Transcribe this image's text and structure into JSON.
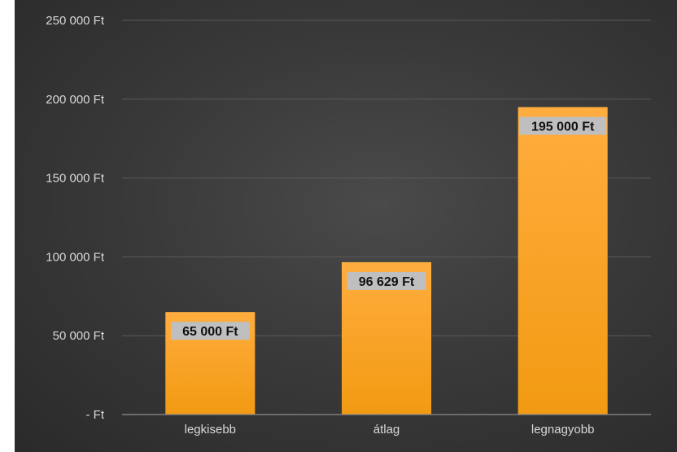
{
  "chart_data": {
    "type": "bar",
    "categories": [
      "legkisebb",
      "átlag",
      "legnagyobb"
    ],
    "values": [
      65000,
      96629,
      195000
    ],
    "data_labels": [
      "65 000 Ft",
      "96 629 Ft",
      "195 000 Ft"
    ],
    "y_ticks": [
      0,
      50000,
      100000,
      150000,
      200000,
      250000
    ],
    "y_tick_labels": [
      "-   Ft",
      "50 000 Ft",
      "100 000 Ft",
      "150 000 Ft",
      "200 000 Ft",
      "250 000 Ft"
    ],
    "ylim": [
      0,
      250000
    ],
    "grid": true,
    "title": "",
    "xlabel": "",
    "ylabel": "",
    "colors": {
      "bar_top": "#ffad3f",
      "bar_bottom": "#f29a12",
      "label_bg": "#bfbfbf",
      "gridline": "#5a5a5a",
      "axis": "#8c8c8c"
    }
  }
}
